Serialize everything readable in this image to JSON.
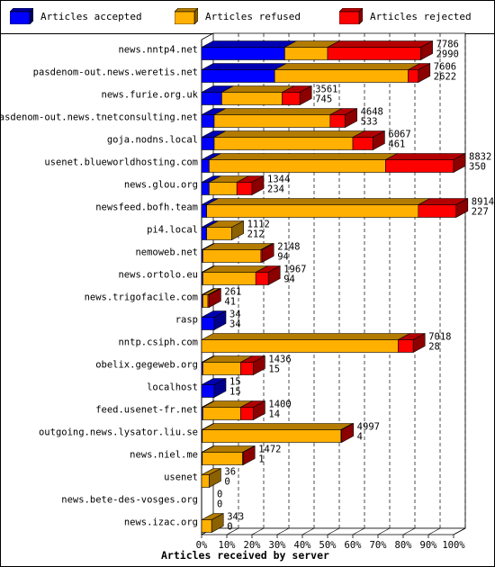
{
  "legend": {
    "accepted": "Articles accepted",
    "refused": "Articles refused",
    "rejected": "Articles rejected"
  },
  "colors": {
    "accepted": "#0000ff",
    "refused": "#ffb000",
    "rejected": "#ff0000"
  },
  "chart_data": {
    "type": "bar",
    "orientation": "horizontal",
    "stacked": true,
    "xlabel": "Articles received by server",
    "x_ticks": [
      "0%",
      "10%",
      "20%",
      "30%",
      "40%",
      "50%",
      "60%",
      "70%",
      "80%",
      "90%",
      "100%"
    ],
    "xlim": [
      0,
      100
    ],
    "grid": true,
    "legend_position": "top",
    "categories": [
      "news.nntp4.net",
      "pasdenom-out.news.weretis.net",
      "news.furie.org.uk",
      "pasdenom-out.news.tnetconsulting.net",
      "goja.nodns.local",
      "usenet.blueworldhosting.com",
      "news.glou.org",
      "newsfeed.bofh.team",
      "pi4.local",
      "nemoweb.net",
      "news.ortolo.eu",
      "news.trigofacile.com",
      "rasp",
      "nntp.csiph.com",
      "obelix.gegeweb.org",
      "localhost",
      "feed.usenet-fr.net",
      "outgoing.news.lysator.liu.se",
      "news.niel.me",
      "usenet",
      "news.bete-des-vosges.org",
      "news.izac.org"
    ],
    "value_labels_top": [
      "7786",
      "7606",
      "3561",
      "4648",
      "6067",
      "8832",
      "1344",
      "8914",
      "1112",
      "2148",
      "1967",
      "261",
      "34",
      "7018",
      "1436",
      "15",
      "1400",
      "4997",
      "1472",
      "36",
      "0",
      "343"
    ],
    "value_labels_bottom": [
      "2990",
      "2622",
      "745",
      "533",
      "461",
      "350",
      "234",
      "227",
      "212",
      "94",
      "94",
      "41",
      "34",
      "28",
      "15",
      "15",
      "14",
      "4",
      "1",
      "0",
      "0",
      "0"
    ],
    "series": [
      {
        "name": "Articles accepted",
        "values": [
          33,
          29,
          8,
          5,
          5,
          3,
          3,
          2,
          2,
          0.5,
          0.5,
          0.5,
          5,
          0,
          0.5,
          5,
          0.5,
          0.3,
          0.3,
          0,
          0,
          0
        ]
      },
      {
        "name": "Articles refused",
        "values": [
          17,
          53,
          24,
          46,
          55,
          70,
          11,
          84,
          10,
          23,
          21,
          2,
          0,
          78,
          15,
          0,
          15,
          55,
          16,
          3,
          0,
          4
        ]
      },
      {
        "name": "Articles rejected",
        "values": [
          37,
          4,
          7,
          6,
          8,
          27,
          6,
          15,
          0,
          0.5,
          5,
          0.5,
          0,
          6,
          5,
          0,
          5,
          0.3,
          0.2,
          0,
          0,
          0
        ]
      }
    ]
  }
}
